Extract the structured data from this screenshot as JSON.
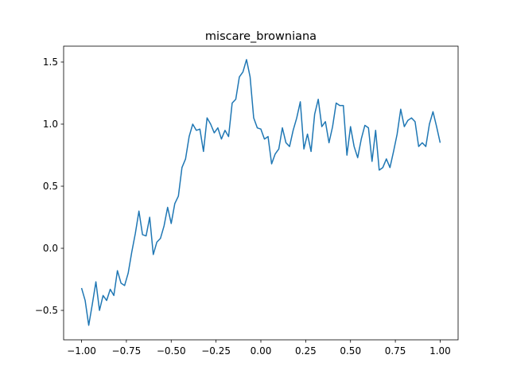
{
  "chart_data": {
    "type": "line",
    "title": "miscare_browniana",
    "x": [
      -1.0,
      -0.98,
      -0.96,
      -0.94,
      -0.92,
      -0.9,
      -0.88,
      -0.86,
      -0.84,
      -0.82,
      -0.8,
      -0.78,
      -0.76,
      -0.74,
      -0.72,
      -0.7,
      -0.68,
      -0.66,
      -0.64,
      -0.62,
      -0.6,
      -0.58,
      -0.56,
      -0.54,
      -0.52,
      -0.5,
      -0.48,
      -0.46,
      -0.44,
      -0.42,
      -0.4,
      -0.38,
      -0.36,
      -0.34,
      -0.32,
      -0.3,
      -0.28,
      -0.26,
      -0.24,
      -0.22,
      -0.2,
      -0.18,
      -0.16,
      -0.14,
      -0.12,
      -0.1,
      -0.08,
      -0.06,
      -0.04,
      -0.02,
      0.0,
      0.02,
      0.04,
      0.06,
      0.08,
      0.1,
      0.12,
      0.14,
      0.16,
      0.18,
      0.2,
      0.22,
      0.24,
      0.26,
      0.28,
      0.3,
      0.32,
      0.34,
      0.36,
      0.38,
      0.4,
      0.42,
      0.44,
      0.46,
      0.48,
      0.5,
      0.52,
      0.54,
      0.56,
      0.58,
      0.6,
      0.62,
      0.64,
      0.66,
      0.68,
      0.7,
      0.72,
      0.74,
      0.76,
      0.78,
      0.8,
      0.82,
      0.84,
      0.86,
      0.88,
      0.9,
      0.92,
      0.94,
      0.96,
      0.98,
      1.0
    ],
    "series": [
      {
        "color": "#1f77b4",
        "values": [
          -0.32,
          -0.42,
          -0.62,
          -0.45,
          -0.27,
          -0.5,
          -0.38,
          -0.42,
          -0.33,
          -0.38,
          -0.18,
          -0.28,
          -0.3,
          -0.2,
          -0.03,
          0.12,
          0.3,
          0.11,
          0.1,
          0.25,
          -0.05,
          0.05,
          0.08,
          0.18,
          0.33,
          0.2,
          0.36,
          0.42,
          0.65,
          0.72,
          0.9,
          1.0,
          0.95,
          0.96,
          0.78,
          1.05,
          1.0,
          0.93,
          0.97,
          0.88,
          0.95,
          0.9,
          1.17,
          1.2,
          1.38,
          1.42,
          1.52,
          1.38,
          1.05,
          0.97,
          0.96,
          0.88,
          0.9,
          0.68,
          0.76,
          0.8,
          0.97,
          0.85,
          0.82,
          0.95,
          1.05,
          1.18,
          0.8,
          0.92,
          0.78,
          1.08,
          1.2,
          0.98,
          1.02,
          0.85,
          0.98,
          1.17,
          1.15,
          1.15,
          0.75,
          0.98,
          0.82,
          0.73,
          0.88,
          0.99,
          0.97,
          0.7,
          0.95,
          0.63,
          0.65,
          0.72,
          0.65,
          0.78,
          0.92,
          1.12,
          0.98,
          1.03,
          1.05,
          1.02,
          0.82,
          0.85,
          0.82,
          1.0,
          1.1,
          0.98,
          0.85
        ]
      }
    ],
    "xlim": [
      -1.1,
      1.1
    ],
    "ylim": [
      -0.737,
      1.628
    ],
    "xticks": [
      {
        "value": -1.0,
        "label": "−1.00"
      },
      {
        "value": -0.75,
        "label": "−0.75"
      },
      {
        "value": -0.5,
        "label": "−0.50"
      },
      {
        "value": -0.25,
        "label": "−0.25"
      },
      {
        "value": 0,
        "label": "0.00"
      },
      {
        "value": 0.25,
        "label": "0.25"
      },
      {
        "value": 0.5,
        "label": "0.50"
      },
      {
        "value": 0.75,
        "label": "0.75"
      },
      {
        "value": 1.0,
        "label": "1.00"
      }
    ],
    "yticks": [
      {
        "value": -0.5,
        "label": "−0.5"
      },
      {
        "value": 0,
        "label": "0.0"
      },
      {
        "value": 0.5,
        "label": "0.5"
      },
      {
        "value": 1.0,
        "label": "1.0"
      },
      {
        "value": 1.5,
        "label": "1.5"
      }
    ],
    "grid": false
  }
}
